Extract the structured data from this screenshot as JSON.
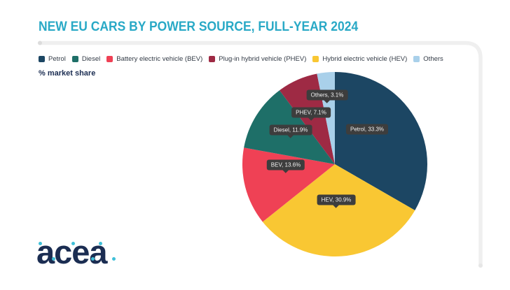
{
  "header": {
    "title": "NEW EU CARS BY POWER SOURCE, FULL-YEAR 2024"
  },
  "logo": {
    "text": "acea"
  },
  "theme": {
    "title_color": "#29a9c6",
    "text_navy": "#1b2d52",
    "callout_bg": "#3d3d3d",
    "frame_line": "#efefef",
    "frame_cap": "#dcdcdc",
    "background": "#ffffff",
    "logo_accent": "#3fc0d8"
  },
  "chart_data": {
    "type": "pie",
    "title": "NEW EU CARS BY POWER SOURCE, FULL-YEAR 2024",
    "unit": "% market share",
    "legend_position": "top",
    "start_angle": "12 o'clock",
    "direction": "clockwise",
    "clockwise_order": [
      "Petrol",
      "HEV",
      "BEV",
      "Diesel",
      "PHEV",
      "Others"
    ],
    "slices": [
      {
        "abbr": "Petrol",
        "label": "Petrol",
        "value": 33.3,
        "color": "#1c4663",
        "callout": "Petrol, 33.3%"
      },
      {
        "abbr": "Diesel",
        "label": "Diesel",
        "value": 11.9,
        "color": "#1e6f68",
        "callout": "Diesel, 11.9%"
      },
      {
        "abbr": "BEV",
        "label": "Battery electric vehicle (BEV)",
        "value": 13.6,
        "color": "#ef4155",
        "callout": "BEV, 13.6%"
      },
      {
        "abbr": "PHEV",
        "label": "Plug-in hybrid vehicle (PHEV)",
        "value": 7.1,
        "color": "#9e2a44",
        "callout": "PHEV, 7.1%"
      },
      {
        "abbr": "HEV",
        "label": "Hybrid electric vehicle (HEV)",
        "value": 30.9,
        "color": "#f9c733",
        "callout": "HEV, 30.9%"
      },
      {
        "abbr": "Others",
        "label": "Others",
        "value": 3.1,
        "color": "#a9d0ea",
        "callout": "Others, 3.1%"
      }
    ]
  }
}
